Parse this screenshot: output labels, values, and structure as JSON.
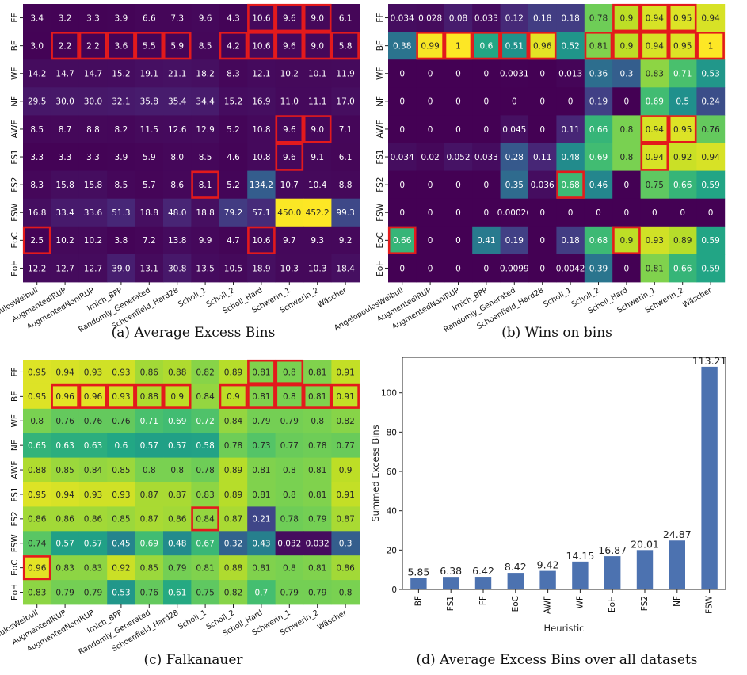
{
  "rows": [
    "FF",
    "BF",
    "WF",
    "NF",
    "AWF",
    "FS1",
    "FS2",
    "FSW",
    "EoC",
    "EoH"
  ],
  "columns": [
    "AngelopoulosWeibull",
    "AugmentedIRUP",
    "AugmentedNonIRUP",
    "Irnich_BPP",
    "Randomly_Generated",
    "Schoenfield_Hard28",
    "Scholl_1",
    "Scholl_2",
    "Scholl_Hard",
    "Schwerin_1",
    "Schwerin_2",
    "Wäscher"
  ],
  "colors": {
    "highlight": "#e31a1c",
    "bar": "#4c72b0",
    "red_label": "#d62728"
  },
  "chart_data": [
    {
      "type": "heatmap",
      "caption": "(a) Average Excess Bins",
      "colormap": "viridis",
      "values": [
        [
          "3.4",
          "3.2",
          "3.3",
          "3.9",
          "6.6",
          "7.3",
          "9.6",
          "4.3",
          "10.6",
          "9.6",
          "9.0",
          "6.1"
        ],
        [
          "3.0",
          "2.2",
          "2.2",
          "3.6",
          "5.5",
          "5.9",
          "8.5",
          "4.2",
          "10.6",
          "9.6",
          "9.0",
          "5.8"
        ],
        [
          "14.2",
          "14.7",
          "14.7",
          "15.2",
          "19.1",
          "21.1",
          "18.2",
          "8.3",
          "12.1",
          "10.2",
          "10.1",
          "11.9"
        ],
        [
          "29.5",
          "30.0",
          "30.0",
          "32.1",
          "35.8",
          "35.4",
          "34.4",
          "15.2",
          "16.9",
          "11.0",
          "11.1",
          "17.0"
        ],
        [
          "8.5",
          "8.7",
          "8.8",
          "8.2",
          "11.5",
          "12.6",
          "12.9",
          "5.2",
          "10.8",
          "9.6",
          "9.0",
          "7.1"
        ],
        [
          "3.3",
          "3.3",
          "3.3",
          "3.9",
          "5.9",
          "8.0",
          "8.5",
          "4.6",
          "10.8",
          "9.6",
          "9.1",
          "6.1"
        ],
        [
          "8.3",
          "15.8",
          "15.8",
          "8.5",
          "5.7",
          "8.6",
          "8.1",
          "5.2",
          "134.2",
          "10.7",
          "10.4",
          "8.8"
        ],
        [
          "16.8",
          "33.4",
          "33.6",
          "51.3",
          "18.8",
          "48.0",
          "18.8",
          "79.2",
          "57.1",
          "450.0",
          "452.2",
          "99.3"
        ],
        [
          "2.5",
          "10.2",
          "10.2",
          "3.8",
          "7.2",
          "13.8",
          "9.9",
          "4.7",
          "10.6",
          "9.7",
          "9.3",
          "9.2"
        ],
        [
          "12.2",
          "12.7",
          "12.7",
          "39.0",
          "13.1",
          "30.8",
          "13.5",
          "10.5",
          "18.9",
          "10.3",
          "10.3",
          "18.4"
        ]
      ],
      "vmin": 0,
      "vmax": 452.2,
      "highlights": [
        [
          0,
          8
        ],
        [
          0,
          9
        ],
        [
          0,
          10
        ],
        [
          1,
          1
        ],
        [
          1,
          2
        ],
        [
          1,
          3
        ],
        [
          1,
          4
        ],
        [
          1,
          5
        ],
        [
          1,
          7
        ],
        [
          1,
          8
        ],
        [
          1,
          9
        ],
        [
          1,
          10
        ],
        [
          1,
          11
        ],
        [
          4,
          9
        ],
        [
          4,
          10
        ],
        [
          5,
          9
        ],
        [
          6,
          6
        ],
        [
          8,
          0
        ],
        [
          8,
          8
        ]
      ]
    },
    {
      "type": "heatmap",
      "caption": "(b) Wins on bins",
      "colormap": "viridis",
      "values": [
        [
          "0.034",
          "0.028",
          "0.08",
          "0.033",
          "0.12",
          "0.18",
          "0.18",
          "0.78",
          "0.9",
          "0.94",
          "0.95",
          "0.94"
        ],
        [
          "0.38",
          "0.99",
          "1",
          "0.6",
          "0.51",
          "0.96",
          "0.52",
          "0.81",
          "0.9",
          "0.94",
          "0.95",
          "1"
        ],
        [
          "0",
          "0",
          "0",
          "0",
          "0.0031",
          "0",
          "0.013",
          "0.36",
          "0.3",
          "0.83",
          "0.71",
          "0.53"
        ],
        [
          "0",
          "0",
          "0",
          "0",
          "0",
          "0",
          "0",
          "0.19",
          "0",
          "0.69",
          "0.5",
          "0.24"
        ],
        [
          "0",
          "0",
          "0",
          "0",
          "0.045",
          "0",
          "0.11",
          "0.66",
          "0.8",
          "0.94",
          "0.95",
          "0.76"
        ],
        [
          "0.034",
          "0.02",
          "0.052",
          "0.033",
          "0.28",
          "0.11",
          "0.48",
          "0.69",
          "0.8",
          "0.94",
          "0.92",
          "0.94"
        ],
        [
          "0",
          "0",
          "0",
          "0",
          "0.35",
          "0.036",
          "0.68",
          "0.46",
          "0",
          "0.75",
          "0.66",
          "0.59"
        ],
        [
          "0",
          "0",
          "0",
          "0",
          "0.00026",
          "0",
          "0",
          "0",
          "0",
          "0",
          "0",
          "0"
        ],
        [
          "0.66",
          "0",
          "0",
          "0.41",
          "0.19",
          "0",
          "0.18",
          "0.68",
          "0.9",
          "0.93",
          "0.89",
          "0.59"
        ],
        [
          "0",
          "0",
          "0",
          "0",
          "0.0099",
          "0",
          "0.0042",
          "0.39",
          "0",
          "0.81",
          "0.66",
          "0.59"
        ]
      ],
      "vmin": 0,
      "vmax": 1,
      "highlights": [
        [
          0,
          8
        ],
        [
          0,
          9
        ],
        [
          0,
          10
        ],
        [
          1,
          1
        ],
        [
          1,
          2
        ],
        [
          1,
          3
        ],
        [
          1,
          4
        ],
        [
          1,
          5
        ],
        [
          1,
          7
        ],
        [
          1,
          8
        ],
        [
          1,
          9
        ],
        [
          1,
          10
        ],
        [
          1,
          11
        ],
        [
          4,
          9
        ],
        [
          4,
          10
        ],
        [
          5,
          9
        ],
        [
          6,
          6
        ],
        [
          8,
          0
        ],
        [
          8,
          8
        ]
      ]
    },
    {
      "type": "heatmap",
      "caption": "(c) Falkanauer",
      "colormap": "viridis",
      "values": [
        [
          "0.95",
          "0.94",
          "0.93",
          "0.93",
          "0.86",
          "0.88",
          "0.82",
          "0.89",
          "0.81",
          "0.8",
          "0.81",
          "0.91"
        ],
        [
          "0.95",
          "0.96",
          "0.96",
          "0.93",
          "0.88",
          "0.9",
          "0.84",
          "0.9",
          "0.81",
          "0.8",
          "0.81",
          "0.91"
        ],
        [
          "0.8",
          "0.76",
          "0.76",
          "0.76",
          "0.71",
          "0.69",
          "0.72",
          "0.84",
          "0.79",
          "0.79",
          "0.8",
          "0.82"
        ],
        [
          "0.65",
          "0.63",
          "0.63",
          "0.6",
          "0.57",
          "0.57",
          "0.58",
          "0.78",
          "0.73",
          "0.77",
          "0.78",
          "0.77"
        ],
        [
          "0.88",
          "0.85",
          "0.84",
          "0.85",
          "0.8",
          "0.8",
          "0.78",
          "0.89",
          "0.81",
          "0.8",
          "0.81",
          "0.9"
        ],
        [
          "0.95",
          "0.94",
          "0.93",
          "0.93",
          "0.87",
          "0.87",
          "0.83",
          "0.89",
          "0.81",
          "0.8",
          "0.81",
          "0.91"
        ],
        [
          "0.86",
          "0.86",
          "0.86",
          "0.85",
          "0.87",
          "0.86",
          "0.84",
          "0.87",
          "0.21",
          "0.78",
          "0.79",
          "0.87"
        ],
        [
          "0.74",
          "0.57",
          "0.57",
          "0.45",
          "0.69",
          "0.48",
          "0.67",
          "0.32",
          "0.43",
          "0.032",
          "0.032",
          "0.3"
        ],
        [
          "0.96",
          "0.83",
          "0.83",
          "0.92",
          "0.85",
          "0.79",
          "0.81",
          "0.88",
          "0.81",
          "0.8",
          "0.81",
          "0.86"
        ],
        [
          "0.83",
          "0.79",
          "0.79",
          "0.53",
          "0.76",
          "0.61",
          "0.75",
          "0.82",
          "0.7",
          "0.79",
          "0.79",
          "0.8"
        ]
      ],
      "vmin": 0,
      "vmax": 1,
      "highlights": [
        [
          0,
          8
        ],
        [
          0,
          9
        ],
        [
          1,
          1
        ],
        [
          1,
          2
        ],
        [
          1,
          3
        ],
        [
          1,
          4
        ],
        [
          1,
          5
        ],
        [
          1,
          7
        ],
        [
          1,
          8
        ],
        [
          1,
          9
        ],
        [
          1,
          10
        ],
        [
          1,
          11
        ],
        [
          6,
          6
        ],
        [
          8,
          0
        ]
      ]
    },
    {
      "type": "bar",
      "caption": "(d) Average Excess Bins over all datasets",
      "categories": [
        "BF",
        "FS1",
        "FF",
        "EoC",
        "AWF",
        "WF",
        "EoH",
        "FS2",
        "NF",
        "FSW"
      ],
      "values": [
        5.85,
        6.38,
        6.42,
        8.42,
        9.42,
        14.15,
        16.87,
        20.01,
        24.87,
        113.21
      ],
      "value_labels": [
        "5.85",
        "6.38",
        "6.42",
        "8.42",
        "9.42",
        "14.15",
        "16.87",
        "20.01",
        "24.87",
        "113.21"
      ],
      "red_categories": [
        "FS1",
        "EoC",
        "EoH",
        "FS2",
        "FSW"
      ],
      "xlabel": "Heuristic",
      "ylabel": "Summed Excess Bins",
      "ylim": [
        0,
        118
      ],
      "yticks": [
        0,
        20,
        40,
        60,
        80,
        100
      ]
    }
  ]
}
